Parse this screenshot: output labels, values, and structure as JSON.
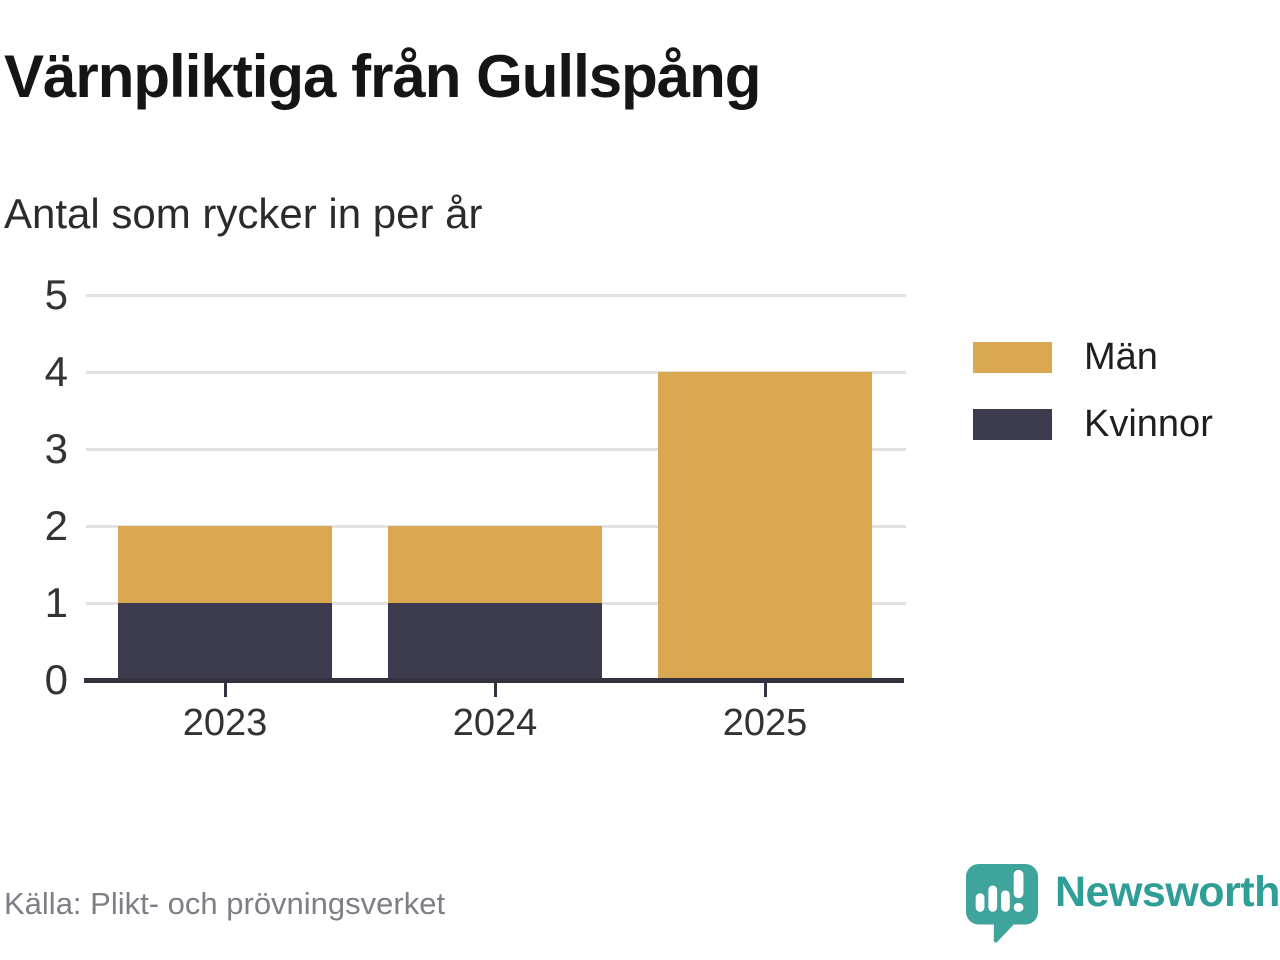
{
  "title": "Värnpliktiga från Gullspång",
  "subtitle": "Antal som rycker in per år",
  "source": "Källa: Plikt- och prövningsverket",
  "branding": {
    "name": "Newsworthy",
    "logo_color": "#3fa49c",
    "text_color": "#2f9e96"
  },
  "colors": {
    "men": "#d9a850",
    "women": "#3d3c4e",
    "grid": "#e2e2e4",
    "axis": "#33323e"
  },
  "chart_data": {
    "type": "bar",
    "stacked": true,
    "title": "Värnpliktiga från Gullspång",
    "subtitle": "Antal som rycker in per år",
    "categories": [
      "2023",
      "2024",
      "2025"
    ],
    "series": [
      {
        "name": "Män",
        "color": "#d9a850",
        "values": [
          1,
          1,
          4
        ]
      },
      {
        "name": "Kvinnor",
        "color": "#3d3c4e",
        "values": [
          1,
          1,
          0
        ]
      }
    ],
    "totals": [
      2,
      2,
      4
    ],
    "yticks": [
      0,
      1,
      2,
      3,
      4,
      5
    ],
    "ylim": [
      0,
      5
    ],
    "xlabel": "",
    "ylabel": "",
    "grid": true,
    "legend_position": "right",
    "source": "Källa: Plikt- och prövningsverket"
  }
}
